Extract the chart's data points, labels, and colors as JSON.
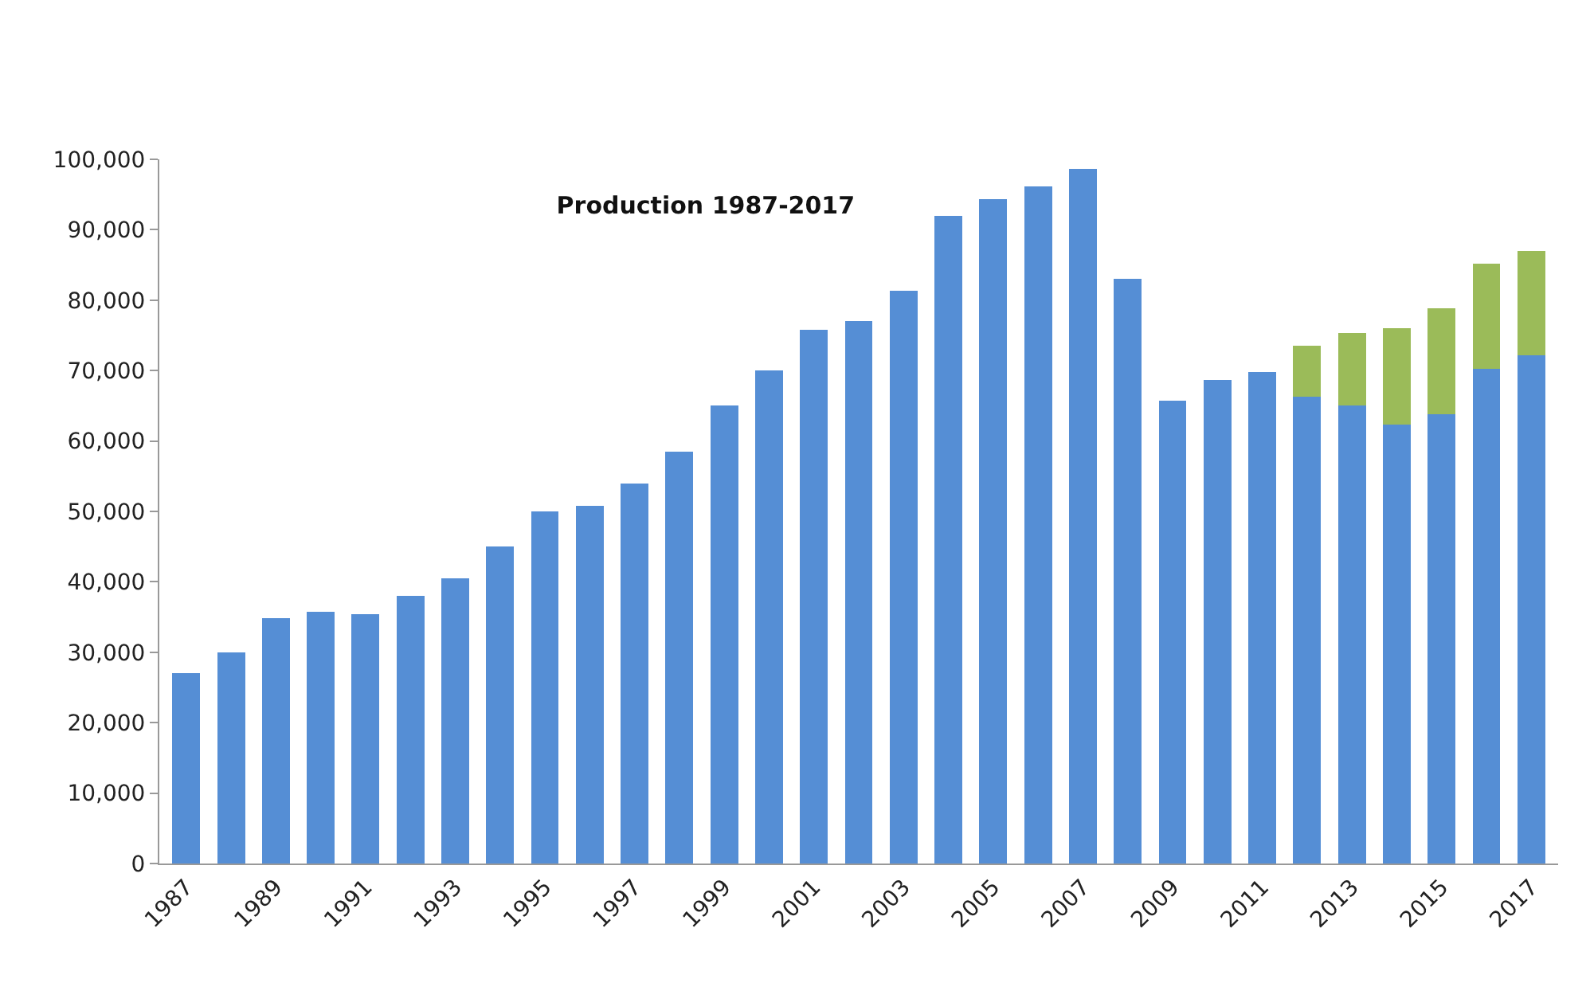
{
  "chart_data": {
    "type": "bar",
    "title": "Production 1987-2017",
    "stacked": true,
    "categories": [
      "1987",
      null,
      "1989",
      null,
      "1991",
      null,
      "1993",
      null,
      "1995",
      null,
      "1997",
      null,
      "1999",
      null,
      "2001",
      null,
      "2003",
      null,
      "2005",
      null,
      "2007",
      null,
      "2009",
      null,
      "2011",
      null,
      "2013",
      null,
      "2015",
      null,
      "2017"
    ],
    "series": [
      {
        "color": "#558ed5",
        "values": [
          27000,
          30000,
          34800,
          35700,
          35400,
          38000,
          40500,
          45000,
          50000,
          50800,
          54000,
          58500,
          65000,
          70000,
          75800,
          77000,
          81300,
          92000,
          94300,
          96200,
          98700,
          83000,
          65700,
          68700,
          69800,
          66300,
          65000,
          62300,
          63800,
          70300,
          72200
        ]
      },
      {
        "color": "#9bbb59",
        "values": [
          null,
          null,
          null,
          null,
          null,
          null,
          null,
          null,
          null,
          null,
          null,
          null,
          null,
          null,
          null,
          null,
          null,
          null,
          null,
          null,
          null,
          null,
          null,
          null,
          null,
          7200,
          10300,
          13700,
          15000,
          14900,
          14800
        ]
      }
    ],
    "ylim": [
      0,
      100000
    ],
    "yticks": [
      {
        "value": 0,
        "label": "0"
      },
      {
        "value": 10000,
        "label": "10,000"
      },
      {
        "value": 20000,
        "label": "20,000"
      },
      {
        "value": 30000,
        "label": "30,000"
      },
      {
        "value": 40000,
        "label": "40,000"
      },
      {
        "value": 50000,
        "label": "50,000"
      },
      {
        "value": 60000,
        "label": "60,000"
      },
      {
        "value": 70000,
        "label": "70,000"
      },
      {
        "value": 80000,
        "label": "80,000"
      },
      {
        "value": 90000,
        "label": "90,000"
      },
      {
        "value": 100000,
        "label": "100,000"
      }
    ]
  }
}
